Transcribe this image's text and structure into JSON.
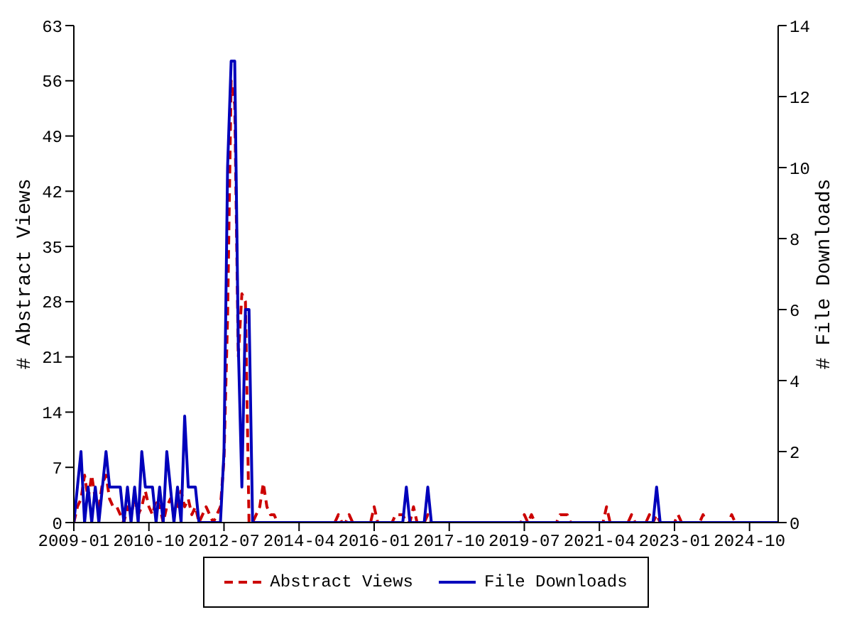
{
  "chart_data": {
    "type": "line",
    "xlim": [
      "2009-01",
      "2025-06"
    ],
    "xticks": [
      "2009-01",
      "2010-10",
      "2012-07",
      "2014-04",
      "2016-01",
      "2017-10",
      "2019-07",
      "2021-04",
      "2023-01",
      "2024-10"
    ],
    "ylabel": "# Abstract Views",
    "y2label": "# File Downloads",
    "ylim": [
      0,
      63
    ],
    "yticks": [
      0,
      7,
      14,
      21,
      28,
      35,
      42,
      49,
      56,
      63
    ],
    "y2lim": [
      0,
      14
    ],
    "y2ticks": [
      0,
      2,
      4,
      6,
      8,
      10,
      12,
      14
    ],
    "grid": false,
    "legend": "bottom",
    "marker": "none",
    "series": [
      {
        "name": "Abstract Views",
        "color": "#cc0000",
        "line_style": "dashed",
        "x": [
          "2009-01",
          "2009-02",
          "2009-03",
          "2009-04",
          "2009-05",
          "2009-06",
          "2009-07",
          "2009-08",
          "2009-09",
          "2009-10",
          "2009-11",
          "2009-12",
          "2010-01",
          "2010-02",
          "2010-03",
          "2010-04",
          "2010-05",
          "2010-06",
          "2010-07",
          "2010-08",
          "2010-09",
          "2010-10",
          "2010-11",
          "2010-12",
          "2011-01",
          "2011-02",
          "2011-03",
          "2011-04",
          "2011-05",
          "2011-06",
          "2011-07",
          "2011-08",
          "2011-09",
          "2011-10",
          "2011-11",
          "2011-12",
          "2012-01",
          "2012-02",
          "2012-03",
          "2012-04",
          "2012-05",
          "2012-06",
          "2012-07",
          "2012-08",
          "2012-09",
          "2012-10",
          "2012-11",
          "2012-12",
          "2013-01",
          "2013-02",
          "2013-03",
          "2013-04",
          "2013-05",
          "2013-06",
          "2013-07",
          "2013-08",
          "2013-09",
          "2013-10",
          "2015-02",
          "2015-03",
          "2015-04",
          "2015-05",
          "2015-06",
          "2015-07",
          "2015-12",
          "2016-01",
          "2016-02",
          "2016-06",
          "2016-07",
          "2016-08",
          "2016-09",
          "2016-10",
          "2016-11",
          "2016-12",
          "2017-01",
          "2017-03",
          "2017-04",
          "2017-05",
          "2019-06",
          "2019-07",
          "2019-08",
          "2019-09",
          "2019-10",
          "2020-04",
          "2020-05",
          "2020-06",
          "2020-07",
          "2020-08",
          "2021-05",
          "2021-06",
          "2021-07",
          "2021-12",
          "2022-01",
          "2022-02",
          "2022-05",
          "2022-06",
          "2022-07",
          "2022-08",
          "2022-09",
          "2023-01",
          "2023-02",
          "2023-03",
          "2023-08",
          "2023-09",
          "2023-10",
          "2024-04",
          "2024-05",
          "2024-06",
          "2025-06"
        ],
        "values": [
          0,
          2,
          3,
          6,
          3,
          6,
          3,
          2,
          5,
          6,
          3,
          2,
          2,
          1,
          0,
          2,
          1,
          3,
          1,
          2,
          4,
          2,
          1,
          3,
          2,
          0,
          2,
          3,
          1,
          2,
          4,
          2,
          3,
          1,
          2,
          0,
          1,
          2,
          1,
          0,
          1,
          2,
          8,
          26,
          56,
          53,
          21,
          29,
          28,
          0,
          0,
          1,
          2,
          5,
          2,
          1,
          1,
          0,
          0,
          1,
          0,
          0,
          1,
          0,
          0,
          2,
          0,
          0,
          1,
          1,
          1,
          0,
          0,
          2,
          0,
          0,
          1,
          0,
          0,
          1,
          0,
          1,
          0,
          0,
          1,
          1,
          1,
          0,
          0,
          2,
          0,
          0,
          1,
          0,
          0,
          1,
          0,
          1,
          0,
          0,
          1,
          0,
          0,
          1,
          0,
          0,
          1,
          0,
          0
        ]
      },
      {
        "name": "File Downloads",
        "color": "#0000bb",
        "line_style": "solid",
        "axis": "y2",
        "x": [
          "2009-01",
          "2009-03",
          "2009-04",
          "2009-05",
          "2009-06",
          "2009-07",
          "2009-08",
          "2009-10",
          "2009-11",
          "2009-12",
          "2010-01",
          "2010-02",
          "2010-03",
          "2010-04",
          "2010-05",
          "2010-06",
          "2010-07",
          "2010-08",
          "2010-09",
          "2010-10",
          "2010-11",
          "2010-12",
          "2011-01",
          "2011-02",
          "2011-03",
          "2011-04",
          "2011-05",
          "2011-06",
          "2011-07",
          "2011-08",
          "2011-09",
          "2011-10",
          "2011-11",
          "2011-12",
          "2012-01",
          "2012-06",
          "2012-07",
          "2012-08",
          "2012-09",
          "2012-10",
          "2012-11",
          "2012-12",
          "2013-01",
          "2013-02",
          "2013-03",
          "2016-09",
          "2016-10",
          "2016-11",
          "2017-03",
          "2017-04",
          "2017-05",
          "2022-07",
          "2022-08",
          "2022-09",
          "2025-06"
        ],
        "values": [
          0,
          2,
          0,
          1,
          0,
          1,
          0,
          2,
          1,
          1,
          1,
          1,
          0,
          1,
          0,
          1,
          0,
          2,
          1,
          1,
          1,
          0,
          1,
          0,
          2,
          1,
          0,
          1,
          0,
          3,
          1,
          1,
          1,
          0,
          0,
          0,
          2,
          10,
          13,
          13,
          5,
          1,
          6,
          6,
          0,
          0,
          1,
          0,
          0,
          1,
          0,
          0,
          1,
          0,
          0
        ]
      }
    ]
  }
}
